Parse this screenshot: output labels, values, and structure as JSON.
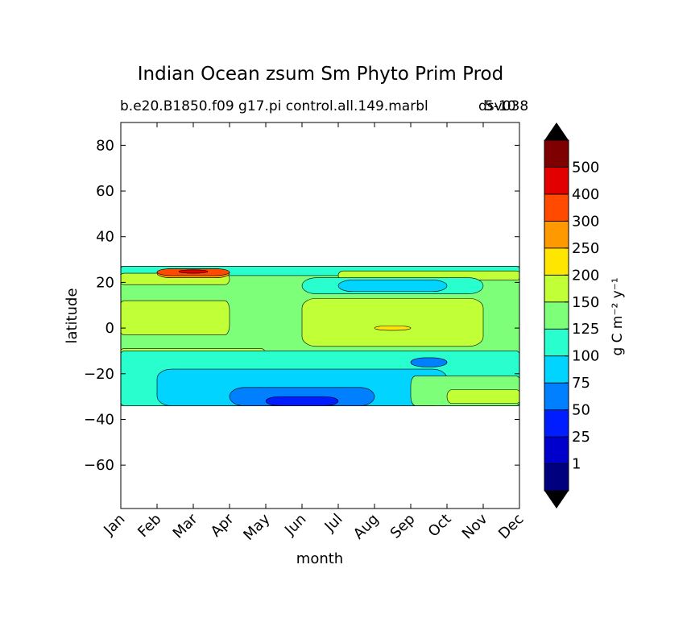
{
  "chart_data": {
    "type": "heatmap",
    "title": "Indian Ocean zsum Sm Phyto Prim Prod",
    "subtitle_left": "b.e20.B1850.f09 g17.pi control.all.149.marbl",
    "subtitle_right_a": "5-10",
    "subtitle_right_b": "dsv038",
    "xlabel": "month",
    "ylabel": "latitude",
    "x_ticks": [
      "Jan",
      "Feb",
      "Mar",
      "Apr",
      "May",
      "Jun",
      "Jul",
      "Aug",
      "Sep",
      "Oct",
      "Nov",
      "Dec"
    ],
    "y_ticks": [
      80,
      60,
      40,
      20,
      0,
      -20,
      -40,
      -60
    ],
    "y_tick_labels": [
      "80",
      "60",
      "40",
      "20",
      "0",
      "−20",
      "−40",
      "−60"
    ],
    "ylim": [
      -79,
      90
    ],
    "data_lat_range": [
      -34,
      27
    ],
    "grid": false,
    "colorbar": {
      "label": "g C m⁻² y⁻¹",
      "extend": "both",
      "levels": [
        1,
        25,
        50,
        75,
        100,
        125,
        150,
        200,
        250,
        300,
        400,
        500
      ],
      "tick_labels": [
        "1",
        "25",
        "50",
        "75",
        "100",
        "125",
        "150",
        "200",
        "250",
        "300",
        "400",
        "500"
      ],
      "colors": [
        "#00007f",
        "#0000cc",
        "#001dff",
        "#0080ff",
        "#00d4ff",
        "#29ffce",
        "#7dff7a",
        "#c1ff36",
        "#ffe600",
        "#ff9900",
        "#ff4a00",
        "#e30000",
        "#7f0000"
      ],
      "under_color": "#000000",
      "over_color": "#000000"
    },
    "fields": {
      "background_level": 125,
      "regions": [
        {
          "level": 100,
          "lat": [
            23,
            27
          ],
          "months": [
            "Jan",
            "Dec"
          ]
        },
        {
          "level": 150,
          "lat": [
            19,
            24
          ],
          "months": [
            "Jan",
            "Apr"
          ]
        },
        {
          "level": 250,
          "lat": [
            22,
            26
          ],
          "months": [
            "Feb",
            "Apr"
          ]
        },
        {
          "level": 300,
          "lat": [
            23,
            26
          ],
          "months": [
            "Feb",
            "Apr"
          ]
        },
        {
          "level": 400,
          "lat": [
            24,
            25.5
          ],
          "months": [
            "Mar",
            "Mar"
          ]
        },
        {
          "level": 150,
          "lat": [
            21,
            25
          ],
          "months": [
            "Jul",
            "Dec"
          ]
        },
        {
          "level": 100,
          "lat": [
            15,
            22
          ],
          "months": [
            "Jun",
            "Nov"
          ]
        },
        {
          "level": 75,
          "lat": [
            16,
            21
          ],
          "months": [
            "Jul",
            "Oct"
          ]
        },
        {
          "level": 150,
          "lat": [
            -3,
            12
          ],
          "months": [
            "Jan",
            "Apr"
          ]
        },
        {
          "level": 150,
          "lat": [
            -8,
            13
          ],
          "months": [
            "Jun",
            "Nov"
          ]
        },
        {
          "level": 200,
          "lat": [
            -1,
            1
          ],
          "months": [
            "Aug",
            "Sep"
          ]
        },
        {
          "level": 150,
          "lat": [
            -14,
            -9
          ],
          "months": [
            "Jan",
            "May"
          ]
        },
        {
          "level": 100,
          "lat": [
            -34,
            -10
          ],
          "months": [
            "Jan",
            "Dec"
          ]
        },
        {
          "level": 75,
          "lat": [
            -34,
            -18
          ],
          "months": [
            "Feb",
            "Oct"
          ]
        },
        {
          "level": 50,
          "lat": [
            -17,
            -13
          ],
          "months": [
            "Sep",
            "Oct"
          ]
        },
        {
          "level": 50,
          "lat": [
            -34,
            -26
          ],
          "months": [
            "Apr",
            "Aug"
          ]
        },
        {
          "level": 25,
          "lat": [
            -34,
            -30
          ],
          "months": [
            "May",
            "Jul"
          ]
        },
        {
          "level": 125,
          "lat": [
            -34,
            -21
          ],
          "months": [
            "Sep",
            "Dec"
          ]
        },
        {
          "level": 150,
          "lat": [
            -33,
            -27
          ],
          "months": [
            "Oct",
            "Dec"
          ]
        }
      ]
    }
  }
}
